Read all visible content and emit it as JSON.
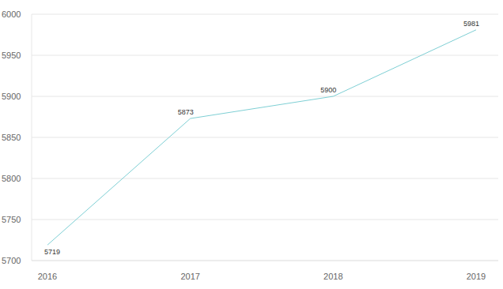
{
  "chart_data": {
    "type": "line",
    "categories": [
      "2016",
      "2017",
      "2018",
      "2019"
    ],
    "values": [
      5719,
      5873,
      5900,
      5981
    ],
    "color": "#7ecfd4",
    "ylim": [
      5700,
      6000
    ],
    "yticks": [
      5700,
      5750,
      5800,
      5850,
      5900,
      5950,
      6000
    ],
    "grid": true,
    "data_labels": true
  }
}
